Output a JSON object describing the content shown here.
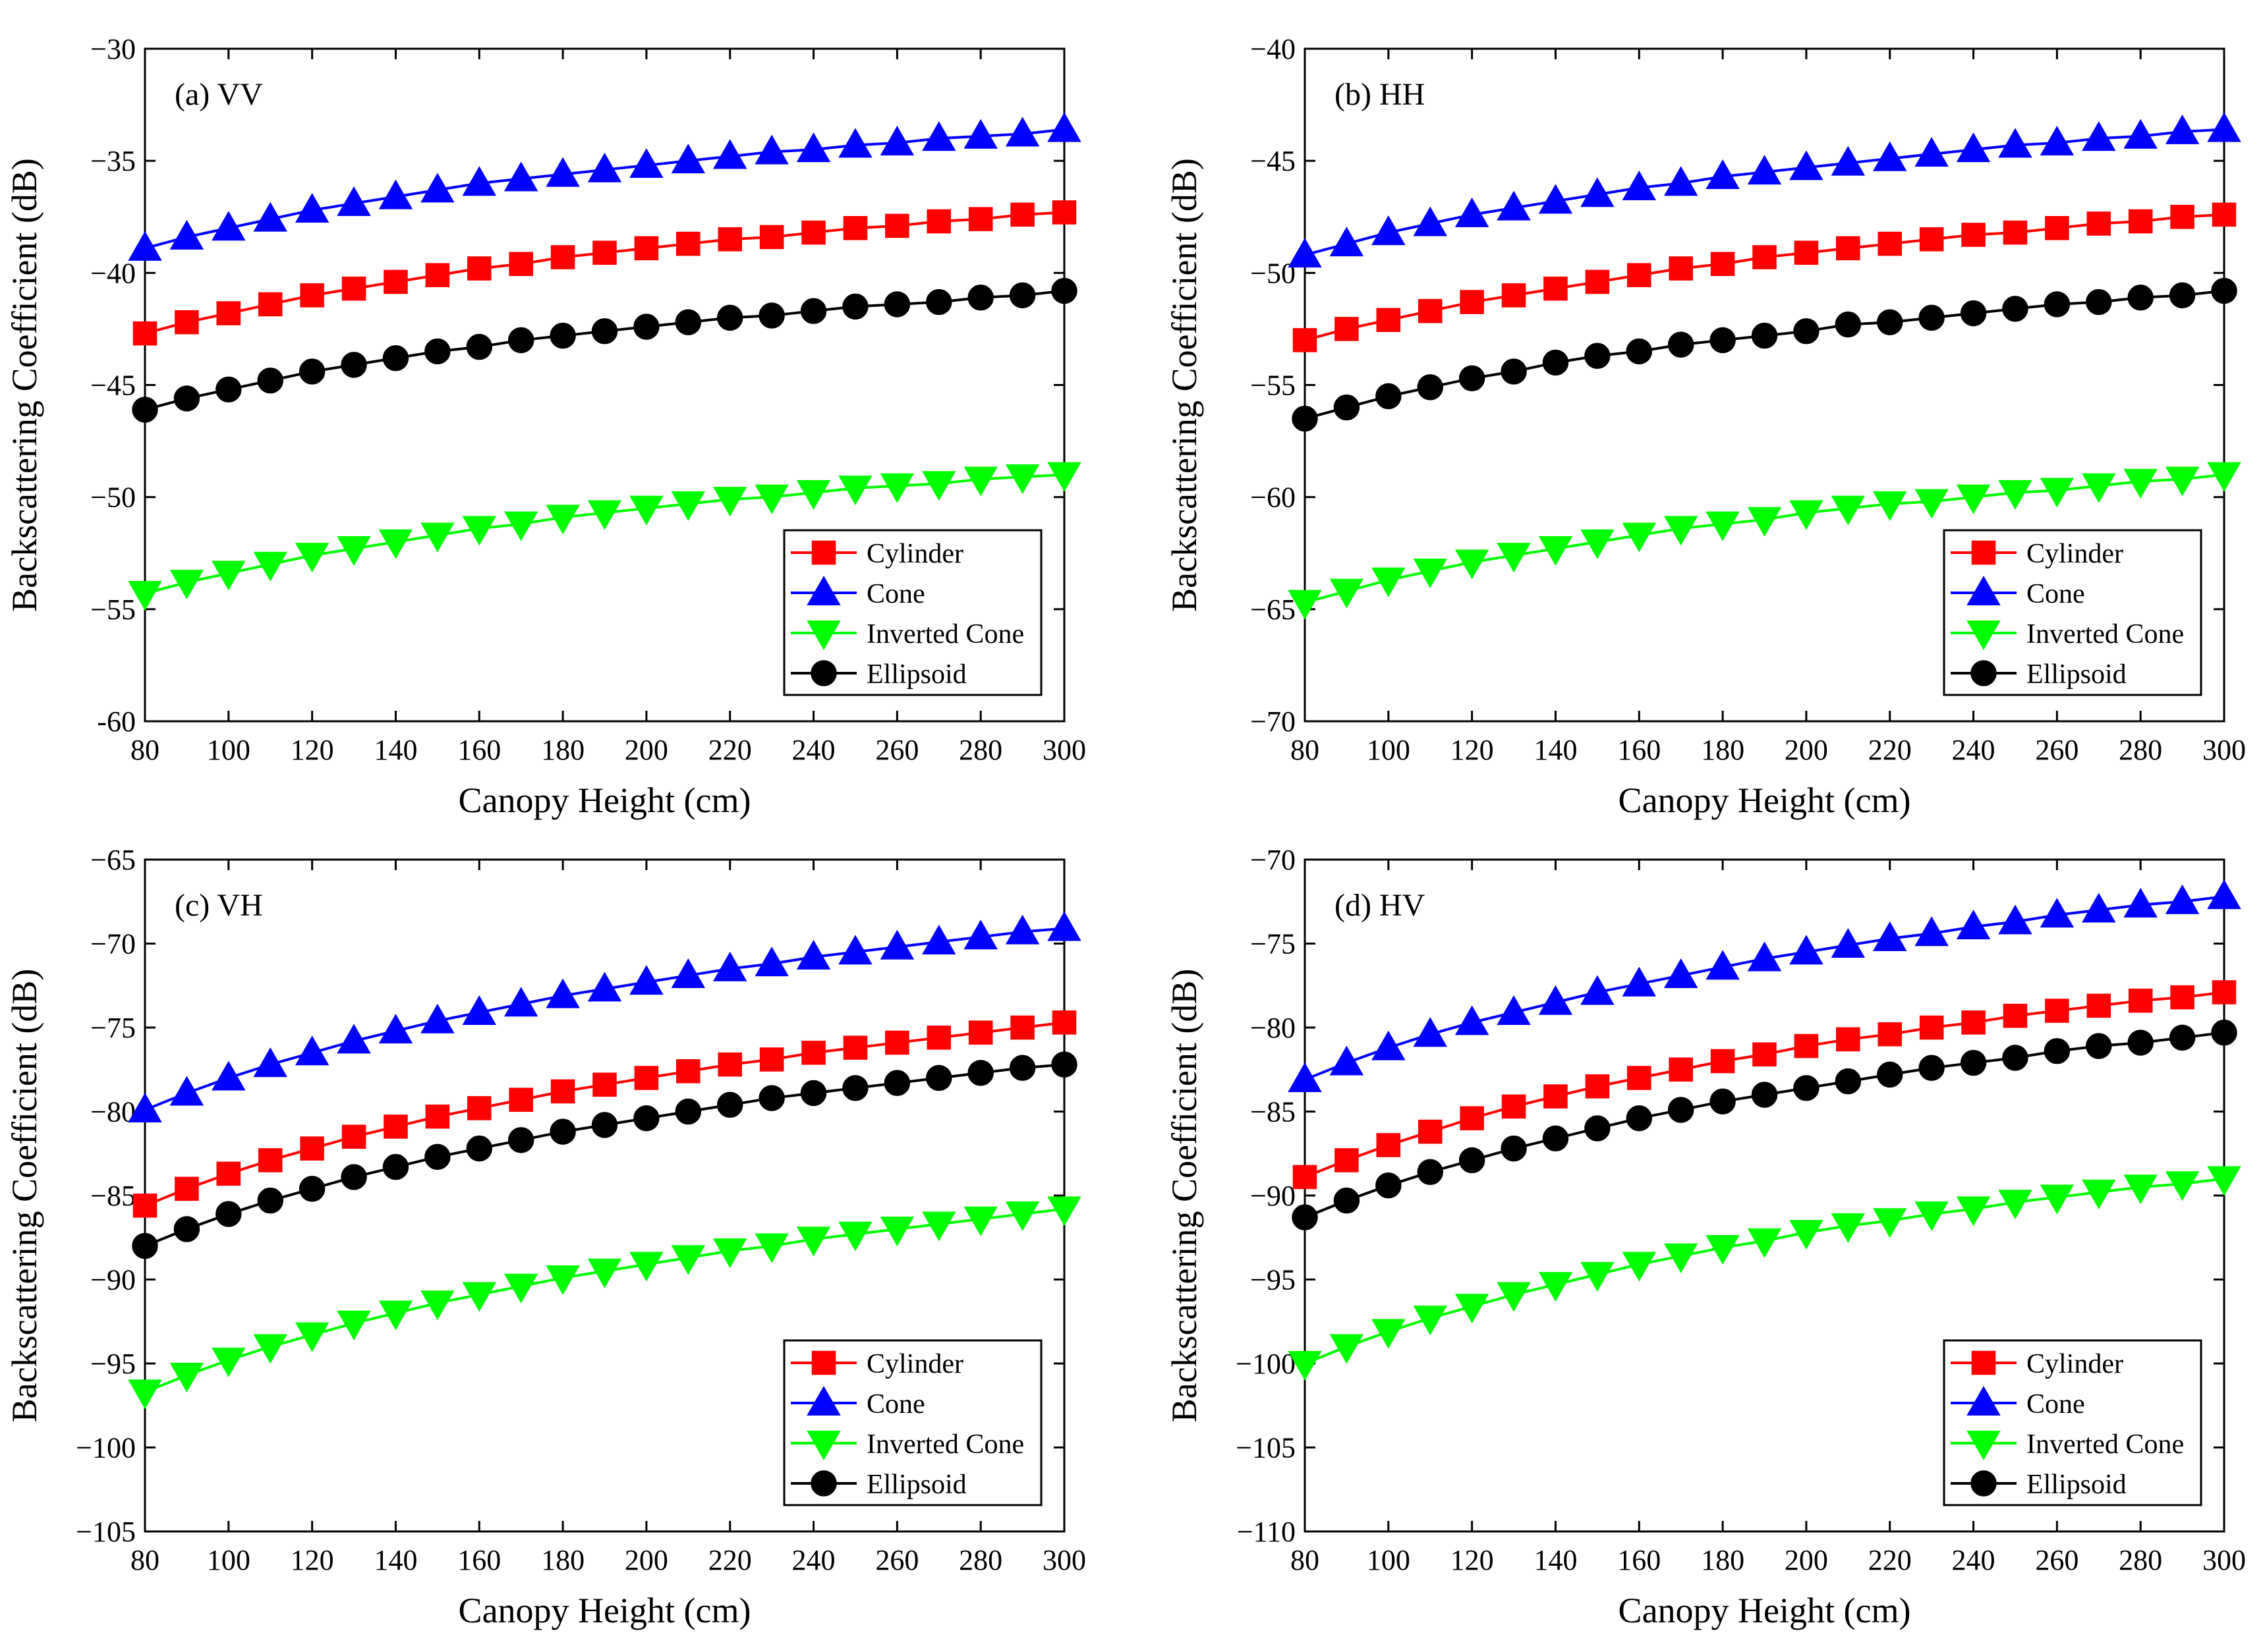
{
  "chart_data": [
    {
      "type": "line",
      "panel_label": "(a) VV",
      "xlabel": "Canopy Height (cm)",
      "ylabel": "Backscattering Coefficient (dB)",
      "xlim": [
        80,
        300
      ],
      "ylim": [
        -60,
        -30
      ],
      "xticks": [
        80,
        100,
        120,
        140,
        160,
        180,
        200,
        220,
        240,
        260,
        280,
        300
      ],
      "yticks": [
        -60,
        -55,
        -50,
        -45,
        -40,
        -35,
        -30
      ],
      "ytick_labels": [
        "-60",
        "−55",
        "−50",
        "−45",
        "−40",
        "−35",
        "−30"
      ],
      "legend_position": "lower-right",
      "x": [
        80,
        90,
        100,
        110,
        120,
        130,
        140,
        150,
        160,
        170,
        180,
        190,
        200,
        210,
        220,
        230,
        240,
        250,
        260,
        270,
        280,
        290,
        300
      ],
      "series": [
        {
          "name": "Cylinder",
          "color": "#ff0000",
          "marker": "square",
          "values": [
            -42.7,
            -42.2,
            -41.8,
            -41.4,
            -41.0,
            -40.7,
            -40.4,
            -40.1,
            -39.8,
            -39.6,
            -39.3,
            -39.1,
            -38.9,
            -38.7,
            -38.5,
            -38.4,
            -38.2,
            -38.0,
            -37.9,
            -37.7,
            -37.6,
            -37.4,
            -37.3
          ]
        },
        {
          "name": "Cone",
          "color": "#0000ff",
          "marker": "triangle-up",
          "values": [
            -38.9,
            -38.4,
            -38.0,
            -37.6,
            -37.2,
            -36.9,
            -36.6,
            -36.3,
            -36.0,
            -35.8,
            -35.6,
            -35.4,
            -35.2,
            -35.0,
            -34.8,
            -34.6,
            -34.5,
            -34.3,
            -34.2,
            -34.0,
            -33.9,
            -33.8,
            -33.6
          ]
        },
        {
          "name": "Inverted Cone",
          "color": "#00ff00",
          "marker": "triangle-down",
          "values": [
            -54.3,
            -53.8,
            -53.4,
            -53.0,
            -52.6,
            -52.3,
            -52.0,
            -51.7,
            -51.4,
            -51.2,
            -50.9,
            -50.7,
            -50.5,
            -50.3,
            -50.1,
            -50.0,
            -49.8,
            -49.6,
            -49.5,
            -49.4,
            -49.2,
            -49.1,
            -49.0
          ]
        },
        {
          "name": "Ellipsoid",
          "color": "#000000",
          "marker": "circle",
          "values": [
            -46.1,
            -45.6,
            -45.2,
            -44.8,
            -44.4,
            -44.1,
            -43.8,
            -43.5,
            -43.3,
            -43.0,
            -42.8,
            -42.6,
            -42.4,
            -42.2,
            -42.0,
            -41.9,
            -41.7,
            -41.5,
            -41.4,
            -41.3,
            -41.1,
            -41.0,
            -40.8
          ]
        }
      ]
    },
    {
      "type": "line",
      "panel_label": "(b) HH",
      "xlabel": "Canopy Height (cm)",
      "ylabel": "Backscattering Coefficient (dB)",
      "xlim": [
        80,
        300
      ],
      "ylim": [
        -70,
        -40
      ],
      "xticks": [
        80,
        100,
        120,
        140,
        160,
        180,
        200,
        220,
        240,
        260,
        280,
        300
      ],
      "yticks": [
        -70,
        -65,
        -60,
        -55,
        -50,
        -45,
        -40
      ],
      "ytick_labels": [
        "−70",
        "−65",
        "−60",
        "−55",
        "−50",
        "−45",
        "−40"
      ],
      "legend_position": "lower-right",
      "x": [
        80,
        90,
        100,
        110,
        120,
        130,
        140,
        150,
        160,
        170,
        180,
        190,
        200,
        210,
        220,
        230,
        240,
        250,
        260,
        270,
        280,
        290,
        300
      ],
      "series": [
        {
          "name": "Cylinder",
          "color": "#ff0000",
          "marker": "square",
          "values": [
            -53.0,
            -52.5,
            -52.1,
            -51.7,
            -51.3,
            -51.0,
            -50.7,
            -50.4,
            -50.1,
            -49.8,
            -49.6,
            -49.3,
            -49.1,
            -48.9,
            -48.7,
            -48.5,
            -48.3,
            -48.2,
            -48.0,
            -47.8,
            -47.7,
            -47.5,
            -47.4
          ]
        },
        {
          "name": "Cone",
          "color": "#0000ff",
          "marker": "triangle-up",
          "values": [
            -49.2,
            -48.7,
            -48.2,
            -47.8,
            -47.4,
            -47.1,
            -46.8,
            -46.5,
            -46.2,
            -46.0,
            -45.7,
            -45.5,
            -45.3,
            -45.1,
            -44.9,
            -44.7,
            -44.5,
            -44.3,
            -44.2,
            -44.0,
            -43.9,
            -43.7,
            -43.6
          ]
        },
        {
          "name": "Inverted Cone",
          "color": "#00ff00",
          "marker": "triangle-down",
          "values": [
            -64.7,
            -64.2,
            -63.7,
            -63.3,
            -62.9,
            -62.6,
            -62.3,
            -62.0,
            -61.7,
            -61.4,
            -61.2,
            -61.0,
            -60.7,
            -60.5,
            -60.3,
            -60.2,
            -60.0,
            -59.8,
            -59.7,
            -59.5,
            -59.3,
            -59.2,
            -59.0
          ]
        },
        {
          "name": "Ellipsoid",
          "color": "#000000",
          "marker": "circle",
          "values": [
            -56.5,
            -56.0,
            -55.5,
            -55.1,
            -54.7,
            -54.4,
            -54.0,
            -53.7,
            -53.5,
            -53.2,
            -53.0,
            -52.8,
            -52.6,
            -52.3,
            -52.2,
            -52.0,
            -51.8,
            -51.6,
            -51.4,
            -51.3,
            -51.1,
            -51.0,
            -50.8
          ]
        }
      ]
    },
    {
      "type": "line",
      "panel_label": "(c) VH",
      "xlabel": "Canopy Height (cm)",
      "ylabel": "Backscattering Coefficient (dB)",
      "xlim": [
        80,
        300
      ],
      "ylim": [
        -105,
        -65
      ],
      "xticks": [
        80,
        100,
        120,
        140,
        160,
        180,
        200,
        220,
        240,
        260,
        280,
        300
      ],
      "yticks": [
        -105,
        -100,
        -95,
        -90,
        -85,
        -80,
        -75,
        -70,
        -65
      ],
      "ytick_labels": [
        "−105",
        "−100",
        "−95",
        "−90",
        "−85",
        "−80",
        "−75",
        "−70",
        "−65"
      ],
      "legend_position": "lower-right",
      "x": [
        80,
        90,
        100,
        110,
        120,
        130,
        140,
        150,
        160,
        170,
        180,
        190,
        200,
        210,
        220,
        230,
        240,
        250,
        260,
        270,
        280,
        290,
        300
      ],
      "series": [
        {
          "name": "Cylinder",
          "color": "#ff0000",
          "marker": "square",
          "values": [
            -85.6,
            -84.6,
            -83.7,
            -82.9,
            -82.2,
            -81.5,
            -80.9,
            -80.3,
            -79.8,
            -79.3,
            -78.8,
            -78.4,
            -78.0,
            -77.6,
            -77.2,
            -76.9,
            -76.5,
            -76.2,
            -75.9,
            -75.6,
            -75.3,
            -75.0,
            -74.7
          ]
        },
        {
          "name": "Cone",
          "color": "#0000ff",
          "marker": "triangle-up",
          "values": [
            -79.9,
            -78.9,
            -78.0,
            -77.2,
            -76.5,
            -75.8,
            -75.2,
            -74.6,
            -74.1,
            -73.6,
            -73.1,
            -72.7,
            -72.3,
            -71.9,
            -71.5,
            -71.2,
            -70.8,
            -70.5,
            -70.2,
            -69.9,
            -69.6,
            -69.3,
            -69.1
          ]
        },
        {
          "name": "Inverted Cone",
          "color": "#00ff00",
          "marker": "triangle-down",
          "values": [
            -96.7,
            -95.7,
            -94.8,
            -94.0,
            -93.3,
            -92.6,
            -92.0,
            -91.4,
            -90.9,
            -90.4,
            -89.9,
            -89.5,
            -89.1,
            -88.7,
            -88.3,
            -88.0,
            -87.6,
            -87.3,
            -87.0,
            -86.7,
            -86.4,
            -86.1,
            -85.8
          ]
        },
        {
          "name": "Ellipsoid",
          "color": "#000000",
          "marker": "circle",
          "values": [
            -88.0,
            -87.0,
            -86.1,
            -85.3,
            -84.6,
            -83.9,
            -83.3,
            -82.7,
            -82.2,
            -81.7,
            -81.2,
            -80.8,
            -80.4,
            -80.0,
            -79.6,
            -79.2,
            -78.9,
            -78.6,
            -78.3,
            -78.0,
            -77.7,
            -77.4,
            -77.2
          ]
        }
      ]
    },
    {
      "type": "line",
      "panel_label": "(d) HV",
      "xlabel": "Canopy Height (cm)",
      "ylabel": "Backscattering Coefficient (dB)",
      "xlim": [
        80,
        300
      ],
      "ylim": [
        -110,
        -70
      ],
      "xticks": [
        80,
        100,
        120,
        140,
        160,
        180,
        200,
        220,
        240,
        260,
        280,
        300
      ],
      "yticks": [
        -110,
        -105,
        -100,
        -95,
        -90,
        -85,
        -80,
        -75,
        -70
      ],
      "ytick_labels": [
        "−110",
        "−105",
        "−100",
        "−95",
        "−90",
        "−85",
        "−80",
        "−75",
        "−70"
      ],
      "legend_position": "lower-right",
      "x": [
        80,
        90,
        100,
        110,
        120,
        130,
        140,
        150,
        160,
        170,
        180,
        190,
        200,
        210,
        220,
        230,
        240,
        250,
        260,
        270,
        280,
        290,
        300
      ],
      "series": [
        {
          "name": "Cylinder",
          "color": "#ff0000",
          "marker": "square",
          "values": [
            -88.9,
            -87.9,
            -87.0,
            -86.2,
            -85.4,
            -84.7,
            -84.1,
            -83.5,
            -83.0,
            -82.5,
            -82.0,
            -81.6,
            -81.1,
            -80.7,
            -80.4,
            -80.0,
            -79.7,
            -79.3,
            -79.0,
            -78.7,
            -78.4,
            -78.2,
            -77.9
          ]
        },
        {
          "name": "Cone",
          "color": "#0000ff",
          "marker": "triangle-up",
          "values": [
            -83.1,
            -82.1,
            -81.2,
            -80.4,
            -79.7,
            -79.1,
            -78.5,
            -77.9,
            -77.4,
            -76.9,
            -76.4,
            -75.9,
            -75.5,
            -75.1,
            -74.7,
            -74.4,
            -74.0,
            -73.7,
            -73.3,
            -73.0,
            -72.7,
            -72.5,
            -72.2
          ]
        },
        {
          "name": "Inverted Cone",
          "color": "#00ff00",
          "marker": "triangle-down",
          "values": [
            -100.0,
            -99.0,
            -98.1,
            -97.3,
            -96.6,
            -95.9,
            -95.3,
            -94.7,
            -94.1,
            -93.6,
            -93.1,
            -92.7,
            -92.2,
            -91.8,
            -91.5,
            -91.1,
            -90.8,
            -90.4,
            -90.1,
            -89.8,
            -89.5,
            -89.3,
            -89.0
          ]
        },
        {
          "name": "Ellipsoid",
          "color": "#000000",
          "marker": "circle",
          "values": [
            -91.3,
            -90.3,
            -89.4,
            -88.6,
            -87.9,
            -87.2,
            -86.6,
            -86.0,
            -85.4,
            -84.9,
            -84.4,
            -84.0,
            -83.6,
            -83.2,
            -82.8,
            -82.4,
            -82.1,
            -81.8,
            -81.4,
            -81.1,
            -80.9,
            -80.6,
            -80.3
          ]
        }
      ]
    }
  ]
}
